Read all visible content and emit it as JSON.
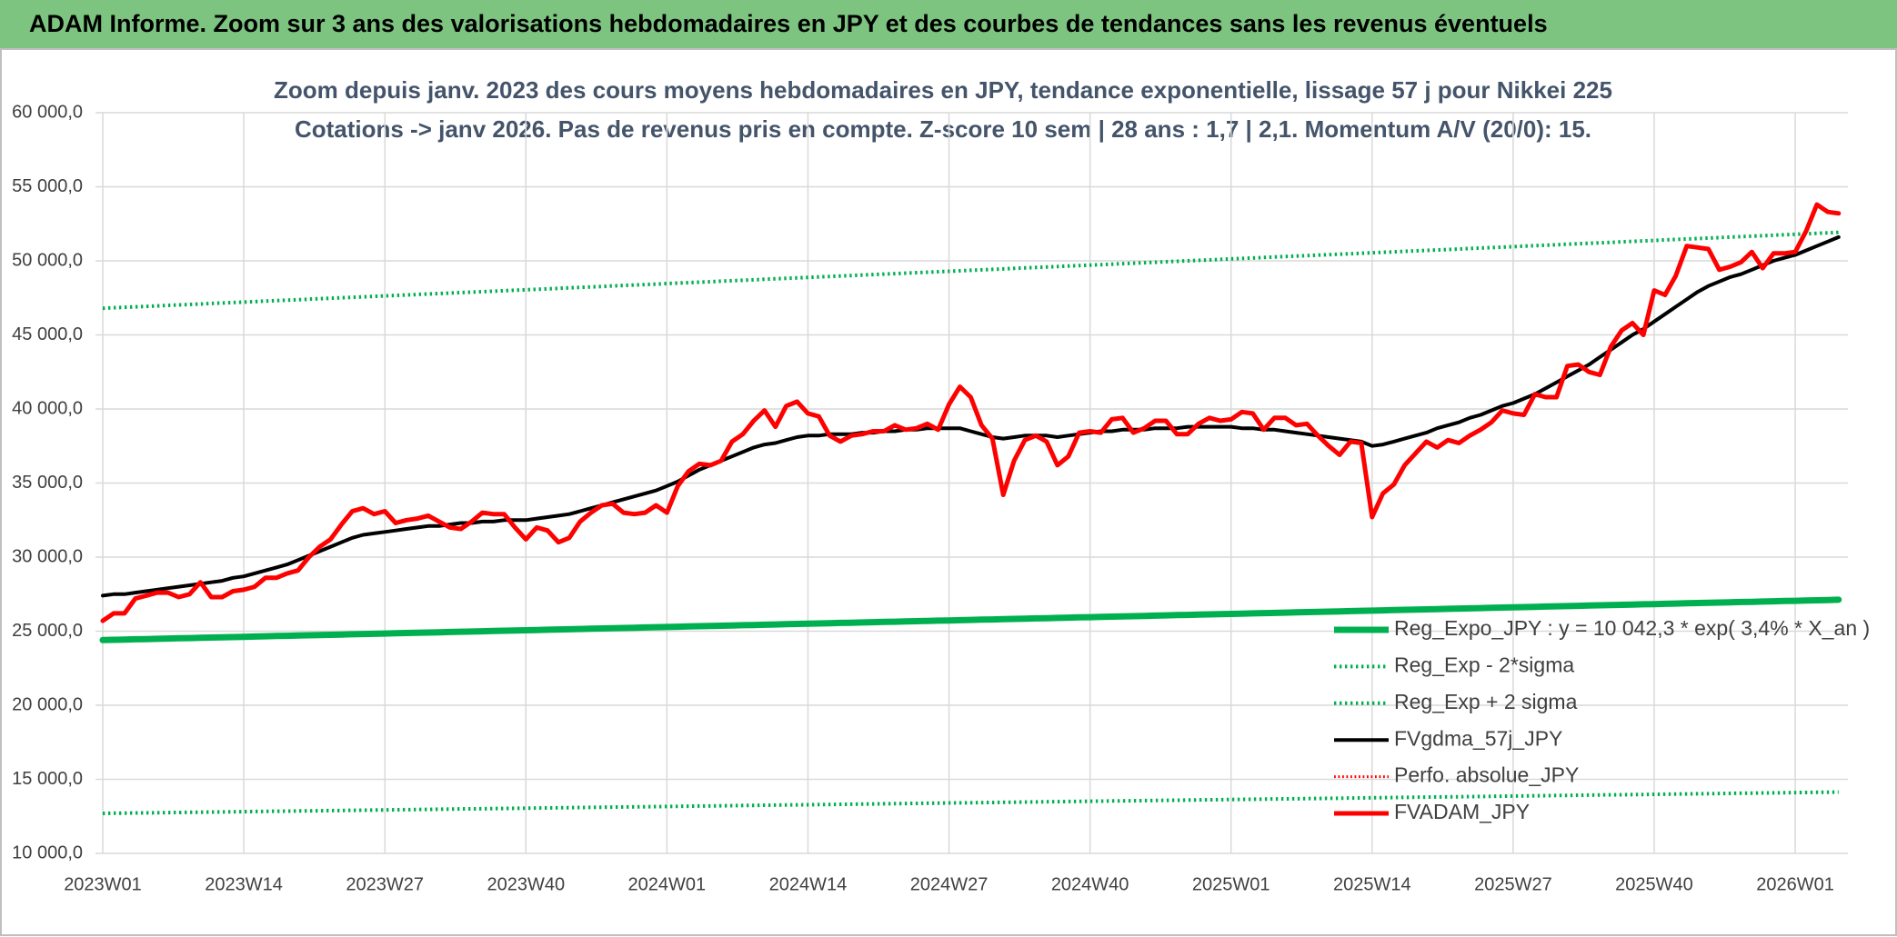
{
  "chart_data": {
    "type": "line",
    "title": "ADAM Informe. Zoom sur 3 ans des valorisations hebdomadaires en JPY et des courbes de tendances sans les revenus éventuels",
    "subtitle": [
      "Zoom depuis janv. 2023 des cours moyens hebdomadaires en JPY, tendance exponentielle, lissage 57 j pour Nikkei 225",
      "Cotations -> janv 2026. Pas de revenus pris en compte. Z-score 10 sem | 28 ans : 1,7 | 2,1. Momentum A/V (20/0): 15."
    ],
    "grid": true,
    "legend": "right",
    "ylim": [
      10000,
      60000
    ],
    "yticks": [
      {
        "value": 10000,
        "label": "10 000,0"
      },
      {
        "value": 15000,
        "label": "15 000,0"
      },
      {
        "value": 20000,
        "label": "20 000,0"
      },
      {
        "value": 25000,
        "label": "25 000,0"
      },
      {
        "value": 30000,
        "label": "30 000,0"
      },
      {
        "value": 35000,
        "label": "35 000,0"
      },
      {
        "value": 40000,
        "label": "40 000,0"
      },
      {
        "value": 45000,
        "label": "45 000,0"
      },
      {
        "value": 50000,
        "label": "50 000,0"
      },
      {
        "value": 55000,
        "label": "55 000,0"
      },
      {
        "value": 60000,
        "label": "60 000,0"
      }
    ],
    "categories": [
      "2023W01",
      null,
      null,
      null,
      null,
      null,
      null,
      null,
      null,
      null,
      null,
      null,
      null,
      "2023W14",
      null,
      null,
      null,
      null,
      null,
      null,
      null,
      null,
      null,
      null,
      null,
      null,
      "2023W27",
      null,
      null,
      null,
      null,
      null,
      null,
      null,
      null,
      null,
      null,
      null,
      null,
      "2023W40",
      null,
      null,
      null,
      null,
      null,
      null,
      null,
      null,
      null,
      null,
      null,
      null,
      "2024W01",
      null,
      null,
      null,
      null,
      null,
      null,
      null,
      null,
      null,
      null,
      null,
      null,
      "2024W14",
      null,
      null,
      null,
      null,
      null,
      null,
      null,
      null,
      null,
      null,
      null,
      null,
      "2024W27",
      null,
      null,
      null,
      null,
      null,
      null,
      null,
      null,
      null,
      null,
      null,
      null,
      "2024W40",
      null,
      null,
      null,
      null,
      null,
      null,
      null,
      null,
      null,
      null,
      null,
      null,
      "2025W01",
      null,
      null,
      null,
      null,
      null,
      null,
      null,
      null,
      null,
      null,
      null,
      null,
      "2025W14",
      null,
      null,
      null,
      null,
      null,
      null,
      null,
      null,
      null,
      null,
      null,
      null,
      "2025W27",
      null,
      null,
      null,
      null,
      null,
      null,
      null,
      null,
      null,
      null,
      null,
      null,
      "2025W40",
      null,
      null,
      null,
      null,
      null,
      null,
      null,
      null,
      null,
      null,
      null,
      null,
      "2026W01",
      null,
      null,
      null,
      null
    ],
    "series": [
      {
        "name": "Reg_Expo_JPY : y = 10 042,3 * exp( 3,4% *  X_an )",
        "color": "#00b050",
        "line_style": "solid",
        "line_width": 7,
        "values": [
          24400,
          24417,
          24434,
          24451,
          24468,
          24485,
          24502,
          24519,
          24536,
          24553,
          24570,
          24587,
          24604,
          24621,
          24638,
          24655,
          24672,
          24689,
          24706,
          24723,
          24740,
          24757,
          24774,
          24791,
          24808,
          24825,
          24842,
          24859,
          24876,
          24893,
          24910,
          24927,
          24944,
          24961,
          24978,
          24995,
          25012,
          25029,
          25046,
          25063,
          25080,
          25097,
          25114,
          25131,
          25148,
          25165,
          25182,
          25199,
          25216,
          25233,
          25250,
          25267,
          25284,
          25301,
          25318,
          25335,
          25352,
          25369,
          25386,
          25403,
          25420,
          25437,
          25454,
          25471,
          25488,
          25505,
          25522,
          25539,
          25556,
          25573,
          25590,
          25607,
          25624,
          25641,
          25658,
          25675,
          25692,
          25709,
          25726,
          25743,
          25760,
          25777,
          25794,
          25811,
          25828,
          25845,
          25862,
          25879,
          25896,
          25913,
          25930,
          25947,
          25964,
          25981,
          25998,
          26015,
          26032,
          26049,
          26066,
          26083,
          26100,
          26117,
          26134,
          26151,
          26168,
          26185,
          26202,
          26219,
          26236,
          26253,
          26270,
          26287,
          26304,
          26321,
          26338,
          26355,
          26372,
          26389,
          26406,
          26423,
          26440,
          26457,
          26474,
          26491,
          26508,
          26525,
          26542,
          26559,
          26576,
          26593,
          26610,
          26627,
          26644,
          26661,
          26678,
          26695,
          26712,
          26729,
          26746,
          26763,
          26780,
          26797,
          26814,
          26831,
          26848,
          26865,
          26882,
          26899,
          26916,
          26933,
          26950,
          26967,
          26984,
          27001,
          27018,
          27035,
          27052,
          27069,
          27086,
          27103,
          27120
        ]
      },
      {
        "name": "Reg_Exp - 2*sigma",
        "color": "#00b050",
        "line_style": "dotted",
        "line_width": 4,
        "values": [
          12700,
          12709,
          12718,
          12727,
          12736,
          12745,
          12754,
          12763,
          12772,
          12781,
          12790,
          12799,
          12808,
          12817,
          12826,
          12835,
          12844,
          12853,
          12862,
          12871,
          12880,
          12889,
          12898,
          12907,
          12916,
          12925,
          12934,
          12943,
          12952,
          12961,
          12970,
          12979,
          12988,
          12997,
          13006,
          13015,
          13024,
          13033,
          13042,
          13051,
          13060,
          13069,
          13078,
          13087,
          13096,
          13105,
          13114,
          13123,
          13132,
          13141,
          13150,
          13159,
          13168,
          13177,
          13186,
          13195,
          13204,
          13213,
          13222,
          13231,
          13240,
          13249,
          13258,
          13267,
          13276,
          13285,
          13294,
          13303,
          13312,
          13321,
          13330,
          13339,
          13348,
          13357,
          13366,
          13375,
          13384,
          13393,
          13402,
          13411,
          13420,
          13429,
          13438,
          13447,
          13456,
          13465,
          13474,
          13483,
          13492,
          13501,
          13510,
          13519,
          13528,
          13537,
          13546,
          13555,
          13564,
          13573,
          13582,
          13591,
          13600,
          13609,
          13618,
          13627,
          13636,
          13645,
          13654,
          13663,
          13672,
          13681,
          13690,
          13699,
          13708,
          13717,
          13726,
          13735,
          13744,
          13753,
          13762,
          13771,
          13780,
          13789,
          13798,
          13807,
          13816,
          13825,
          13834,
          13843,
          13852,
          13861,
          13870,
          13879,
          13888,
          13897,
          13906,
          13915,
          13924,
          13933,
          13942,
          13951,
          13960,
          13969,
          13978,
          13987,
          13996,
          14005,
          14014,
          14023,
          14032,
          14041,
          14050,
          14059,
          14068,
          14077,
          14086,
          14095,
          14104,
          14113,
          14122,
          14131,
          14140
        ]
      },
      {
        "name": "Reg_Exp + 2 sigma",
        "color": "#00b050",
        "line_style": "dotted",
        "line_width": 4,
        "values": [
          46800,
          46832,
          46864,
          46896,
          46928,
          46960,
          46992,
          47024,
          47056,
          47088,
          47120,
          47152,
          47184,
          47216,
          47248,
          47280,
          47312,
          47344,
          47376,
          47408,
          47440,
          47472,
          47504,
          47536,
          47568,
          47600,
          47632,
          47664,
          47696,
          47728,
          47760,
          47792,
          47824,
          47856,
          47888,
          47920,
          47952,
          47984,
          48016,
          48048,
          48080,
          48112,
          48144,
          48176,
          48208,
          48240,
          48272,
          48304,
          48336,
          48368,
          48400,
          48432,
          48464,
          48496,
          48528,
          48560,
          48592,
          48624,
          48656,
          48688,
          48720,
          48752,
          48784,
          48816,
          48848,
          48880,
          48912,
          48944,
          48976,
          49008,
          49040,
          49072,
          49104,
          49136,
          49168,
          49200,
          49232,
          49264,
          49296,
          49328,
          49360,
          49392,
          49424,
          49456,
          49488,
          49520,
          49552,
          49584,
          49616,
          49648,
          49680,
          49712,
          49744,
          49776,
          49808,
          49840,
          49872,
          49904,
          49936,
          49968,
          50000,
          50032,
          50064,
          50096,
          50128,
          50160,
          50192,
          50224,
          50256,
          50288,
          50320,
          50352,
          50384,
          50416,
          50448,
          50480,
          50512,
          50544,
          50576,
          50608,
          50640,
          50672,
          50704,
          50736,
          50768,
          50800,
          50832,
          50864,
          50896,
          50928,
          50960,
          50992,
          51024,
          51056,
          51088,
          51120,
          51152,
          51184,
          51216,
          51248,
          51280,
          51312,
          51344,
          51376,
          51408,
          51440,
          51472,
          51504,
          51536,
          51568,
          51600,
          51632,
          51664,
          51696,
          51728,
          51760,
          51792,
          51824,
          51856,
          51888,
          51920
        ]
      },
      {
        "name": "FVgdma_57j_JPY",
        "color": "#000000",
        "line_style": "solid",
        "line_width": 4,
        "values": [
          27400,
          27500,
          27500,
          27600,
          27700,
          27800,
          27900,
          28000,
          28100,
          28200,
          28300,
          28400,
          28600,
          28700,
          28900,
          29100,
          29300,
          29500,
          29800,
          30100,
          30400,
          30700,
          31000,
          31300,
          31500,
          31600,
          31700,
          31800,
          31900,
          32000,
          32100,
          32100,
          32200,
          32300,
          32300,
          32400,
          32400,
          32500,
          32500,
          32500,
          32600,
          32700,
          32800,
          32900,
          33100,
          33300,
          33500,
          33700,
          33900,
          34100,
          34300,
          34500,
          34800,
          35100,
          35500,
          35900,
          36200,
          36500,
          36800,
          37100,
          37400,
          37600,
          37700,
          37900,
          38100,
          38200,
          38200,
          38300,
          38300,
          38300,
          38400,
          38400,
          38500,
          38500,
          38600,
          38600,
          38700,
          38700,
          38700,
          38700,
          38500,
          38300,
          38100,
          38000,
          38100,
          38200,
          38200,
          38200,
          38100,
          38200,
          38300,
          38400,
          38500,
          38500,
          38600,
          38600,
          38600,
          38700,
          38700,
          38700,
          38800,
          38800,
          38800,
          38800,
          38800,
          38700,
          38700,
          38600,
          38600,
          38500,
          38400,
          38300,
          38200,
          38100,
          38000,
          37900,
          37800,
          37500,
          37600,
          37800,
          38000,
          38200,
          38400,
          38700,
          38900,
          39100,
          39400,
          39600,
          39900,
          40200,
          40400,
          40700,
          41000,
          41400,
          41800,
          42200,
          42600,
          43000,
          43500,
          44000,
          44500,
          45000,
          45400,
          45900,
          46400,
          46900,
          47400,
          47900,
          48300,
          48600,
          48900,
          49100,
          49400,
          49700,
          50000,
          50200,
          50400,
          50700,
          51000,
          51300,
          51600
        ]
      },
      {
        "name": "Perfo. absolue_JPY",
        "color": "#ff0000",
        "line_style": "dotted",
        "line_width": 3
      },
      {
        "name": "FVADAM_JPY",
        "color": "#ff0000",
        "line_style": "solid",
        "line_width": 5,
        "values": [
          25700,
          26200,
          26200,
          27200,
          27400,
          27600,
          27600,
          27300,
          27500,
          28300,
          27300,
          27300,
          27700,
          27800,
          28000,
          28600,
          28600,
          28900,
          29100,
          30000,
          30700,
          31200,
          32200,
          33100,
          33300,
          32900,
          33100,
          32300,
          32500,
          32600,
          32800,
          32400,
          32000,
          31900,
          32400,
          33000,
          32900,
          32900,
          32000,
          31200,
          32000,
          31800,
          31000,
          31300,
          32400,
          33000,
          33500,
          33600,
          33000,
          32900,
          33000,
          33500,
          33000,
          34800,
          35800,
          36300,
          36200,
          36500,
          37800,
          38300,
          39200,
          39900,
          38800,
          40200,
          40500,
          39700,
          39500,
          38200,
          37800,
          38200,
          38300,
          38500,
          38500,
          38900,
          38600,
          38700,
          39000,
          38600,
          40300,
          41500,
          40800,
          38900,
          38000,
          34200,
          36500,
          37900,
          38200,
          37800,
          36200,
          36800,
          38400,
          38500,
          38400,
          39300,
          39400,
          38400,
          38700,
          39200,
          39200,
          38300,
          38300,
          39000,
          39400,
          39200,
          39300,
          39800,
          39700,
          38600,
          39400,
          39400,
          38900,
          39000,
          38200,
          37500,
          36900,
          37800,
          37700,
          32700,
          34300,
          34900,
          36200,
          37000,
          37800,
          37400,
          37900,
          37700,
          38200,
          38600,
          39100,
          39900,
          39700,
          39600,
          41000,
          40800,
          40800,
          42900,
          43000,
          42500,
          42300,
          44200,
          45300,
          45800,
          45000,
          48000,
          47700,
          49000,
          51000,
          50900,
          50800,
          49400,
          49600,
          49900,
          50600,
          49500,
          50500,
          50500,
          50600,
          52000,
          53800,
          53300,
          53200
        ]
      }
    ]
  }
}
